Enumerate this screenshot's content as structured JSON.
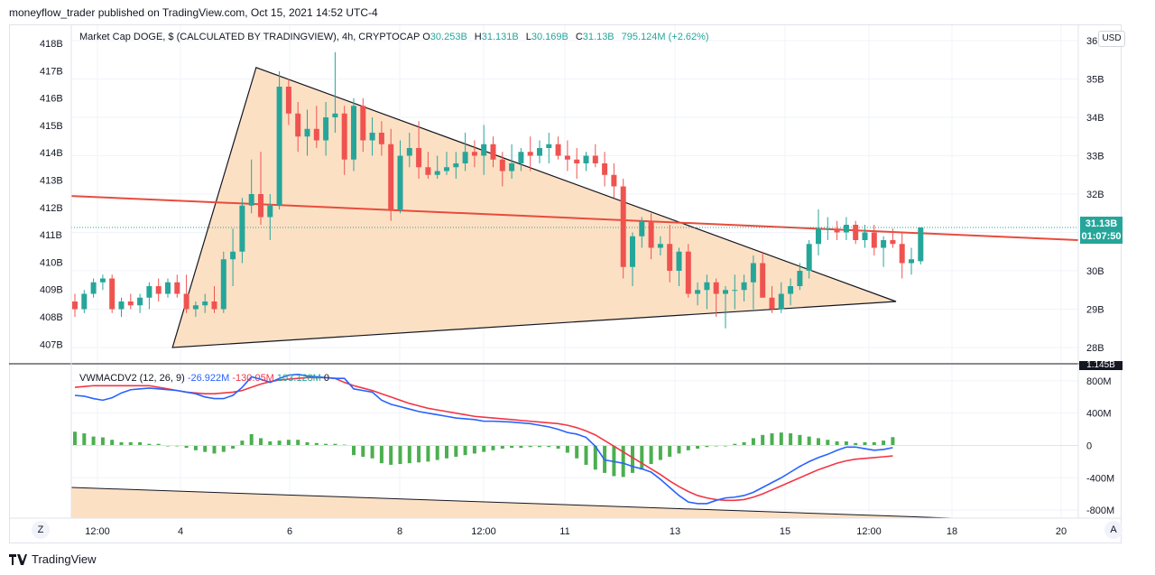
{
  "header": {
    "text": "moneyflow_trader published on TradingView.com, Oct 15, 2021 14:52 UTC-4"
  },
  "legend": {
    "title": "Market Cap DOGE, $ (CALCULATED BY TRADINGVIEW), 4h, CRYPTOCAP",
    "o_label": "O",
    "o": "30.253B",
    "h_label": "H",
    "h": "31.131B",
    "l_label": "L",
    "l": "30.169B",
    "c_label": "C",
    "c": "31.13B",
    "change": "795.124M (+2.62%)"
  },
  "indicator_legend": {
    "name": "VWMACDV2 (12, 26, 9)",
    "macd": "-26.922M",
    "signal": "-130.05M",
    "hist": "103.128M",
    "zero": "0"
  },
  "usd_button": "USD",
  "price_badge": {
    "value": "31.13B",
    "countdown": "01:07:50"
  },
  "small_badge": "1.145B",
  "corner": {
    "z": "Z",
    "a": "A"
  },
  "footer": {
    "brand": "TradingView"
  },
  "colors": {
    "up": "#26a69a",
    "down": "#ef5350",
    "macd": "#2962ff",
    "signal": "#f23645",
    "shade": "#fce0c4",
    "trend_red": "#e74c3c"
  },
  "chart_data": {
    "type": "candlestick",
    "title": "Market Cap DOGE, $ (CALCULATED BY TRADINGVIEW), 4h, CRYPTOCAP",
    "right_axis_ticks": [
      "36B",
      "35B",
      "34B",
      "33B",
      "32B",
      "31B",
      "30B",
      "29B",
      "28B"
    ],
    "right_axis_values": [
      36,
      35,
      34,
      33,
      32,
      31,
      30,
      29,
      28
    ],
    "left_axis_ticks": [
      "418B",
      "417B",
      "416B",
      "415B",
      "414B",
      "413B",
      "412B",
      "411B",
      "410B",
      "409B",
      "408B",
      "407B"
    ],
    "x_tick_labels": [
      "12:00",
      "4",
      "6",
      "8",
      "12:00",
      "11",
      "13",
      "15",
      "12:00",
      "18",
      "20"
    ],
    "ylim": [
      27.6,
      36.4
    ],
    "candles": [
      [
        29.2,
        29.4,
        28.8,
        29.0
      ],
      [
        29.0,
        29.5,
        28.9,
        29.4
      ],
      [
        29.4,
        29.8,
        29.3,
        29.7
      ],
      [
        29.7,
        29.9,
        29.5,
        29.8
      ],
      [
        29.8,
        29.9,
        28.9,
        29.0
      ],
      [
        29.0,
        29.3,
        28.8,
        29.2
      ],
      [
        29.2,
        29.4,
        29.0,
        29.1
      ],
      [
        29.1,
        29.4,
        28.9,
        29.3
      ],
      [
        29.3,
        29.7,
        29.0,
        29.6
      ],
      [
        29.6,
        29.8,
        29.2,
        29.4
      ],
      [
        29.4,
        29.8,
        29.3,
        29.7
      ],
      [
        29.7,
        29.9,
        29.3,
        29.4
      ],
      [
        29.4,
        29.9,
        28.9,
        29.0
      ],
      [
        29.0,
        29.2,
        28.8,
        29.1
      ],
      [
        29.1,
        29.4,
        28.9,
        29.2
      ],
      [
        29.2,
        29.6,
        28.9,
        29.0
      ],
      [
        29.0,
        30.5,
        28.9,
        30.3
      ],
      [
        30.3,
        31.1,
        29.6,
        30.5
      ],
      [
        30.5,
        31.9,
        30.2,
        31.7
      ],
      [
        31.7,
        32.9,
        31.5,
        32.0
      ],
      [
        32.0,
        33.1,
        31.2,
        31.4
      ],
      [
        31.4,
        32.0,
        30.8,
        31.7
      ],
      [
        31.7,
        35.2,
        31.6,
        34.8
      ],
      [
        34.8,
        35.0,
        33.8,
        34.1
      ],
      [
        34.1,
        34.4,
        33.1,
        33.5
      ],
      [
        33.5,
        34.2,
        33.0,
        33.7
      ],
      [
        33.7,
        34.3,
        33.2,
        33.4
      ],
      [
        33.4,
        34.4,
        33.0,
        34.0
      ],
      [
        34.0,
        35.7,
        33.6,
        34.1
      ],
      [
        34.1,
        34.3,
        32.5,
        32.9
      ],
      [
        32.9,
        34.5,
        32.6,
        34.3
      ],
      [
        34.3,
        34.5,
        33.1,
        33.4
      ],
      [
        33.4,
        34.0,
        33.0,
        33.6
      ],
      [
        33.6,
        33.9,
        33.0,
        33.3
      ],
      [
        33.3,
        33.7,
        31.3,
        31.6
      ],
      [
        31.6,
        33.4,
        31.5,
        33.0
      ],
      [
        33.0,
        33.6,
        32.7,
        33.2
      ],
      [
        33.2,
        33.9,
        32.4,
        32.7
      ],
      [
        32.7,
        33.1,
        32.4,
        32.5
      ],
      [
        32.5,
        33.0,
        32.4,
        32.6
      ],
      [
        32.6,
        33.1,
        32.5,
        32.7
      ],
      [
        32.7,
        33.1,
        32.4,
        32.8
      ],
      [
        32.8,
        33.6,
        32.6,
        33.1
      ],
      [
        33.1,
        33.4,
        32.7,
        33.0
      ],
      [
        33.0,
        33.8,
        32.5,
        33.3
      ],
      [
        33.3,
        33.5,
        32.7,
        32.9
      ],
      [
        32.9,
        33.1,
        32.2,
        32.6
      ],
      [
        32.6,
        33.3,
        32.4,
        32.8
      ],
      [
        32.8,
        33.2,
        32.6,
        33.1
      ],
      [
        33.1,
        33.5,
        32.6,
        33.0
      ],
      [
        33.0,
        33.4,
        32.8,
        33.2
      ],
      [
        33.2,
        33.6,
        32.8,
        33.3
      ],
      [
        33.3,
        33.5,
        32.9,
        33.0
      ],
      [
        33.0,
        33.4,
        32.6,
        32.9
      ],
      [
        32.9,
        33.2,
        32.4,
        32.8
      ],
      [
        32.8,
        33.1,
        32.6,
        33.0
      ],
      [
        33.0,
        33.3,
        32.7,
        32.8
      ],
      [
        32.8,
        33.1,
        32.2,
        32.5
      ],
      [
        32.5,
        32.8,
        31.9,
        32.2
      ],
      [
        32.2,
        32.4,
        29.8,
        30.1
      ],
      [
        30.1,
        31.0,
        29.6,
        30.9
      ],
      [
        30.9,
        31.4,
        30.6,
        31.3
      ],
      [
        31.3,
        31.5,
        30.3,
        30.6
      ],
      [
        30.6,
        30.9,
        30.4,
        30.7
      ],
      [
        30.7,
        31.2,
        29.7,
        30.0
      ],
      [
        30.0,
        30.6,
        29.6,
        30.5
      ],
      [
        30.5,
        30.7,
        29.3,
        29.4
      ],
      [
        29.4,
        29.7,
        29.1,
        29.5
      ],
      [
        29.5,
        29.9,
        29.0,
        29.7
      ],
      [
        29.7,
        29.8,
        28.8,
        29.4
      ],
      [
        29.4,
        29.6,
        28.5,
        29.5
      ],
      [
        29.5,
        29.9,
        29.0,
        29.5
      ],
      [
        29.5,
        29.9,
        29.2,
        29.7
      ],
      [
        29.7,
        30.4,
        29.0,
        30.2
      ],
      [
        30.2,
        30.5,
        29.3,
        29.3
      ],
      [
        29.3,
        29.6,
        28.9,
        29.0
      ],
      [
        29.0,
        29.7,
        28.9,
        29.4
      ],
      [
        29.4,
        29.8,
        29.1,
        29.6
      ],
      [
        29.6,
        30.2,
        29.5,
        30.0
      ],
      [
        30.0,
        30.8,
        29.8,
        30.7
      ],
      [
        30.7,
        31.6,
        30.4,
        31.1
      ],
      [
        31.1,
        31.4,
        30.8,
        31.1
      ],
      [
        31.1,
        31.3,
        30.8,
        31.0
      ],
      [
        31.0,
        31.4,
        30.8,
        31.2
      ],
      [
        31.2,
        31.3,
        30.7,
        30.8
      ],
      [
        30.8,
        31.2,
        30.6,
        31.0
      ],
      [
        31.0,
        31.2,
        30.4,
        30.6
      ],
      [
        30.6,
        30.9,
        30.1,
        30.8
      ],
      [
        30.8,
        31.1,
        30.6,
        30.7
      ],
      [
        30.7,
        31.0,
        29.8,
        30.2
      ],
      [
        30.2,
        30.6,
        29.9,
        30.3
      ],
      [
        30.25,
        31.131,
        30.169,
        31.13
      ]
    ],
    "macd": [
      620,
      610,
      580,
      560,
      590,
      650,
      690,
      700,
      710,
      700,
      690,
      680,
      660,
      640,
      600,
      580,
      580,
      620,
      720,
      850,
      820,
      780,
      830,
      870,
      880,
      860,
      850,
      840,
      830,
      830,
      700,
      680,
      660,
      560,
      510,
      480,
      450,
      420,
      400,
      380,
      360,
      340,
      330,
      320,
      300,
      300,
      295,
      290,
      280,
      270,
      250,
      230,
      200,
      160,
      140,
      100,
      -10,
      -180,
      -200,
      -220,
      -260,
      -290,
      -330,
      -420,
      -520,
      -620,
      -700,
      -720,
      -720,
      -680,
      -650,
      -640,
      -620,
      -580,
      -520,
      -460,
      -400,
      -330,
      -260,
      -200,
      -150,
      -110,
      -60,
      -20,
      -20,
      -40,
      -60,
      -50,
      -27
    ],
    "signal": [
      720,
      730,
      740,
      740,
      740,
      740,
      740,
      740,
      740,
      720,
      700,
      680,
      660,
      650,
      640,
      640,
      650,
      660,
      680,
      720,
      760,
      790,
      810,
      820,
      830,
      840,
      840,
      840,
      830,
      780,
      740,
      710,
      680,
      640,
      600,
      560,
      520,
      490,
      460,
      440,
      420,
      400,
      380,
      360,
      350,
      340,
      330,
      320,
      310,
      300,
      290,
      280,
      270,
      250,
      220,
      180,
      130,
      60,
      -10,
      -80,
      -150,
      -220,
      -290,
      -360,
      -440,
      -510,
      -570,
      -620,
      -650,
      -670,
      -680,
      -680,
      -670,
      -640,
      -600,
      -550,
      -500,
      -450,
      -400,
      -350,
      -300,
      -260,
      -220,
      -190,
      -170,
      -160,
      -150,
      -140,
      -130
    ],
    "histogram": [
      170,
      150,
      110,
      100,
      70,
      40,
      40,
      40,
      20,
      20,
      0,
      0,
      -30,
      -60,
      -80,
      -100,
      -80,
      -40,
      60,
      140,
      90,
      50,
      60,
      70,
      70,
      40,
      30,
      20,
      20,
      10,
      -120,
      -140,
      -160,
      -220,
      -240,
      -230,
      -220,
      -210,
      -200,
      -180,
      -160,
      -140,
      -120,
      -100,
      -80,
      -60,
      -40,
      -30,
      -30,
      -20,
      -20,
      -20,
      -40,
      -90,
      -160,
      -240,
      -300,
      -340,
      -380,
      -390,
      -340,
      -300,
      -230,
      -180,
      -140,
      -100,
      -60,
      -40,
      -20,
      -10,
      -10,
      20,
      40,
      90,
      130,
      150,
      160,
      150,
      130,
      110,
      90,
      70,
      50,
      50,
      30,
      40,
      40,
      60,
      103
    ],
    "indicator_axis_ticks": [
      "800M",
      "400M",
      "0",
      "-400M",
      "-800M"
    ]
  }
}
